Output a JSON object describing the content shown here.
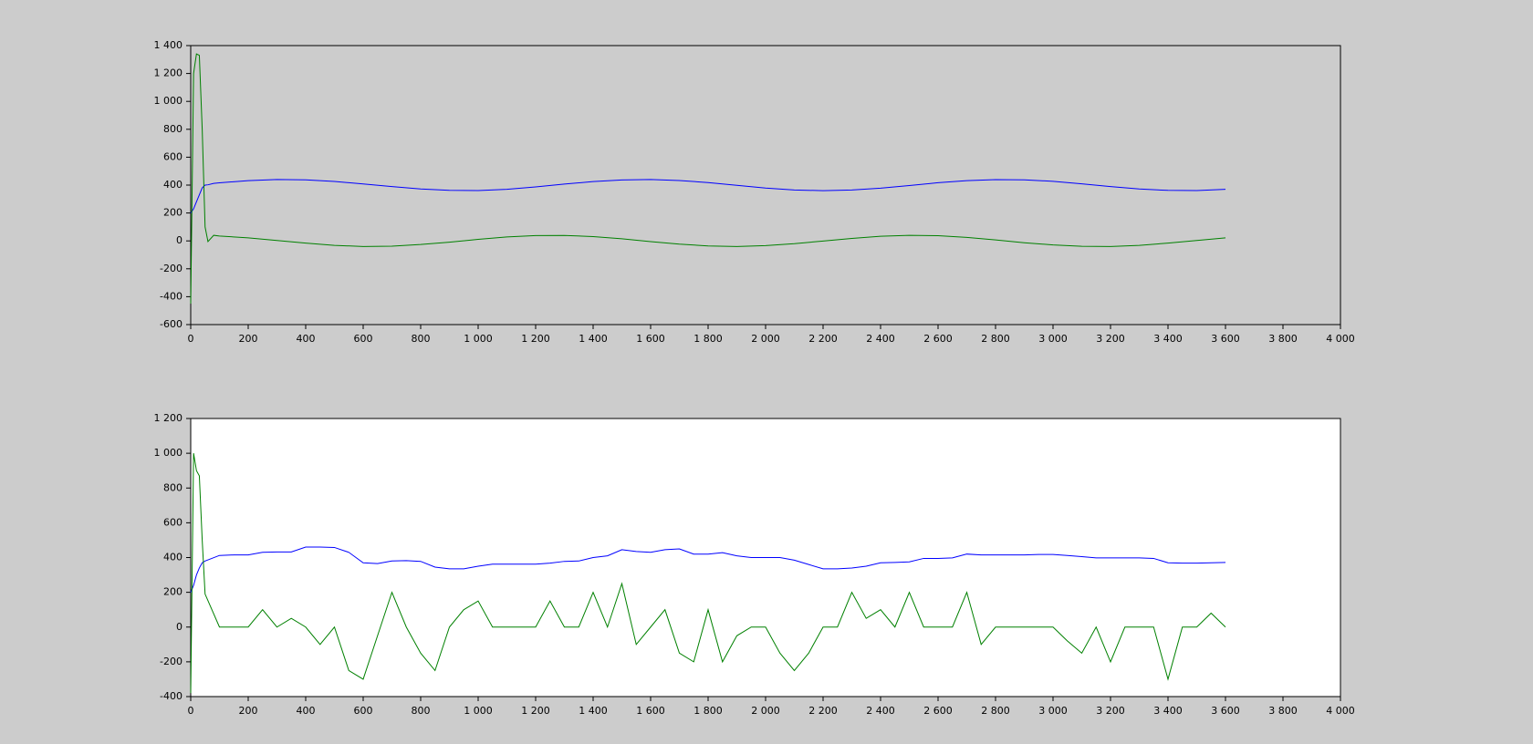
{
  "chart_data": [
    {
      "type": "line",
      "background": "#cccccc",
      "x": [
        0,
        10,
        20,
        30,
        40,
        50,
        60,
        80,
        100,
        200,
        300,
        400,
        500,
        600,
        700,
        800,
        900,
        1000,
        1100,
        1200,
        1300,
        1400,
        1500,
        1600,
        1700,
        1800,
        1900,
        2000,
        2100,
        2200,
        2300,
        2400,
        2500,
        2600,
        2700,
        2800,
        2900,
        3000,
        3100,
        3200,
        3300,
        3400,
        3500,
        3600
      ],
      "series": [
        {
          "color": "#0000ff",
          "values": [
            200,
            230,
            280,
            330,
            380,
            400,
            402,
            412,
            416,
            432,
            440,
            438,
            426,
            408,
            389,
            372,
            362,
            361,
            370,
            387,
            407,
            425,
            437,
            440,
            433,
            418,
            398,
            379,
            365,
            360,
            365,
            378,
            397,
            417,
            432,
            439,
            438,
            427,
            409,
            389,
            372,
            362,
            361,
            370
          ]
        },
        {
          "color": "#008000",
          "values": [
            -450,
            1200,
            1340,
            1330,
            800,
            100,
            -5,
            40,
            35,
            22,
            3,
            -16,
            -32,
            -40,
            -38,
            -26,
            -9,
            11,
            28,
            38,
            39,
            31,
            15,
            -5,
            -23,
            -36,
            -40,
            -34,
            -20,
            -1,
            18,
            33,
            40,
            37,
            25,
            7,
            -13,
            -29,
            -39,
            -40,
            -32,
            -16,
            3,
            22
          ]
        }
      ],
      "xlim": [
        0,
        4000
      ],
      "xticks": [
        0,
        200,
        400,
        600,
        800,
        {
          "value": 1000,
          "label": "1 000"
        },
        {
          "value": 1200,
          "label": "1 200"
        },
        {
          "value": 1400,
          "label": "1 400"
        },
        {
          "value": 1600,
          "label": "1 600"
        },
        {
          "value": 1800,
          "label": "1 800"
        },
        {
          "value": 2000,
          "label": "2 000"
        },
        {
          "value": 2200,
          "label": "2 200"
        },
        {
          "value": 2400,
          "label": "2 400"
        },
        {
          "value": 2600,
          "label": "2 600"
        },
        {
          "value": 2800,
          "label": "2 800"
        },
        {
          "value": 3000,
          "label": "3 000"
        },
        {
          "value": 3200,
          "label": "3 200"
        },
        {
          "value": 3400,
          "label": "3 400"
        },
        {
          "value": 3600,
          "label": "3 600"
        },
        {
          "value": 3800,
          "label": "3 800"
        },
        {
          "value": 4000,
          "label": "4 000"
        }
      ],
      "ylim": [
        -600,
        1400
      ],
      "yticks": [
        -600,
        -400,
        -200,
        0,
        200,
        400,
        600,
        800,
        {
          "value": 1000,
          "label": "1 000"
        },
        {
          "value": 1200,
          "label": "1 200"
        },
        {
          "value": 1400,
          "label": "1 400"
        }
      ]
    },
    {
      "type": "line",
      "background": "#ffffff",
      "x": [
        0,
        10,
        20,
        30,
        40,
        50,
        100,
        150,
        200,
        250,
        300,
        350,
        400,
        450,
        500,
        550,
        600,
        650,
        700,
        750,
        800,
        850,
        900,
        950,
        1000,
        1050,
        1100,
        1150,
        1200,
        1250,
        1300,
        1350,
        1400,
        1450,
        1500,
        1550,
        1600,
        1650,
        1700,
        1750,
        1800,
        1850,
        1900,
        1950,
        2000,
        2050,
        2100,
        2150,
        2200,
        2250,
        2300,
        2350,
        2400,
        2450,
        2500,
        2550,
        2600,
        2650,
        2700,
        2750,
        2800,
        2850,
        2900,
        2950,
        3000,
        3050,
        3100,
        3150,
        3200,
        3250,
        3300,
        3350,
        3400,
        3450,
        3500,
        3550,
        3600
      ],
      "series": [
        {
          "color": "#0000ff",
          "values": [
            200,
            240,
            300,
            340,
            370,
            380,
            412,
            415,
            415,
            430,
            432,
            432,
            460,
            460,
            458,
            430,
            370,
            365,
            380,
            382,
            378,
            345,
            335,
            335,
            350,
            362,
            362,
            362,
            362,
            368,
            378,
            380,
            400,
            410,
            445,
            435,
            430,
            445,
            450,
            420,
            420,
            428,
            410,
            400,
            400,
            400,
            385,
            360,
            335,
            335,
            340,
            350,
            370,
            372,
            375,
            395,
            395,
            398,
            420,
            415,
            415,
            415,
            415,
            418,
            418,
            412,
            405,
            398,
            398,
            398,
            398,
            395,
            370,
            368,
            368,
            370,
            372
          ]
        },
        {
          "color": "#008000",
          "values": [
            -380,
            1000,
            900,
            870,
            500,
            190,
            0,
            0,
            0,
            100,
            0,
            50,
            0,
            -100,
            0,
            -250,
            -300,
            -50,
            200,
            0,
            -150,
            -250,
            0,
            100,
            150,
            0,
            0,
            0,
            0,
            150,
            0,
            0,
            200,
            0,
            250,
            -100,
            0,
            100,
            -150,
            -200,
            100,
            -200,
            -50,
            0,
            0,
            -150,
            -250,
            -150,
            0,
            0,
            200,
            50,
            100,
            0,
            200,
            0,
            0,
            0,
            200,
            -100,
            0,
            0,
            0,
            0,
            0,
            -80,
            -150,
            0,
            -200,
            0,
            0,
            0,
            -300,
            0,
            0,
            80,
            0
          ]
        }
      ],
      "xlim": [
        0,
        4000
      ],
      "xticks": [
        0,
        200,
        400,
        600,
        800,
        {
          "value": 1000,
          "label": "1 000"
        },
        {
          "value": 1200,
          "label": "1 200"
        },
        {
          "value": 1400,
          "label": "1 400"
        },
        {
          "value": 1600,
          "label": "1 600"
        },
        {
          "value": 1800,
          "label": "1 800"
        },
        {
          "value": 2000,
          "label": "2 000"
        },
        {
          "value": 2200,
          "label": "2 200"
        },
        {
          "value": 2400,
          "label": "2 400"
        },
        {
          "value": 2600,
          "label": "2 600"
        },
        {
          "value": 2800,
          "label": "2 800"
        },
        {
          "value": 3000,
          "label": "3 000"
        },
        {
          "value": 3200,
          "label": "3 200"
        },
        {
          "value": 3400,
          "label": "3 400"
        },
        {
          "value": 3600,
          "label": "3 600"
        },
        {
          "value": 3800,
          "label": "3 800"
        },
        {
          "value": 4000,
          "label": "4 000"
        }
      ],
      "ylim": [
        -400,
        1200
      ],
      "yticks": [
        -400,
        -200,
        0,
        200,
        400,
        600,
        800,
        {
          "value": 1000,
          "label": "1 000"
        },
        {
          "value": 1200,
          "label": "1 200"
        }
      ]
    }
  ]
}
